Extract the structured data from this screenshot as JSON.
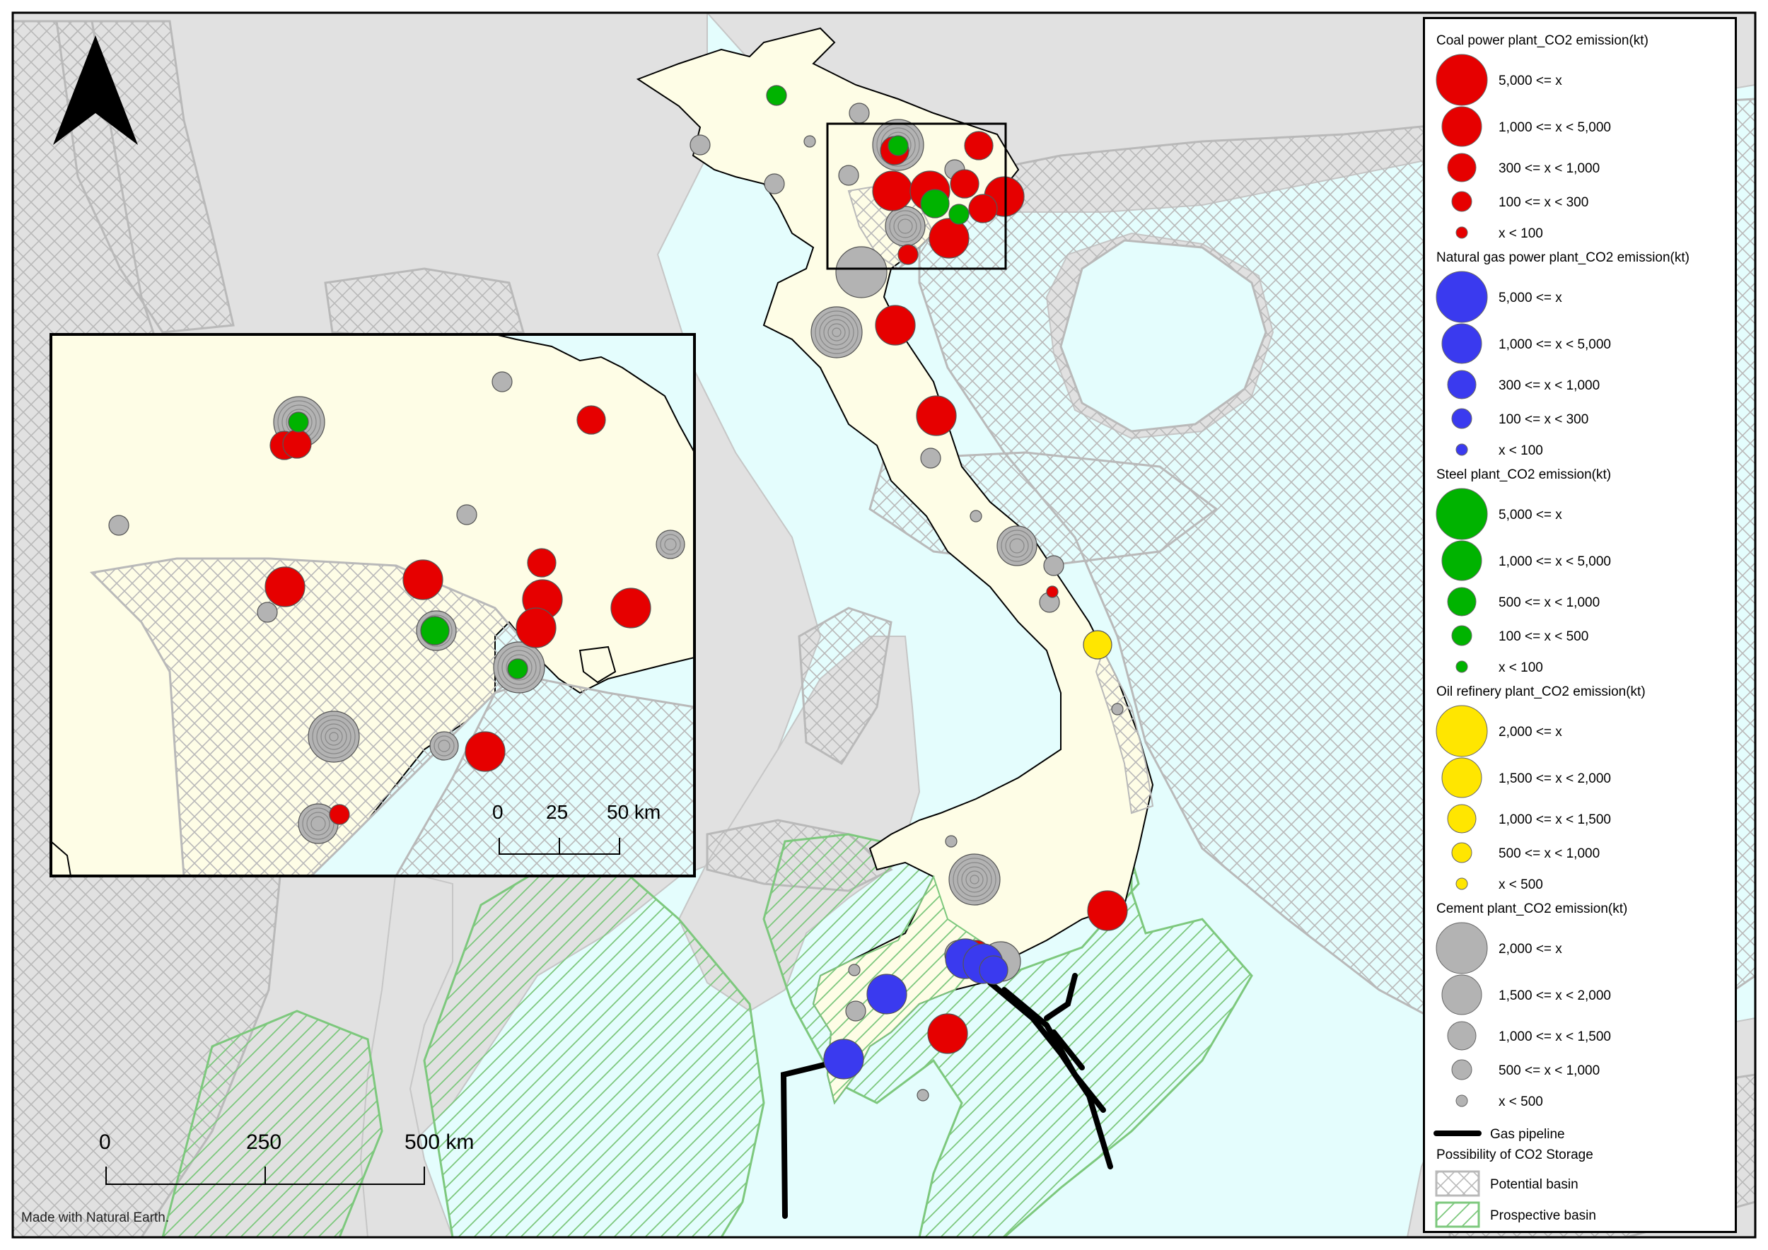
{
  "credit": "Made with Natural Earth.",
  "scale_bar": {
    "labels": [
      "0",
      "250",
      "500 km"
    ]
  },
  "inset_scale_bar": {
    "labels": [
      "0",
      "25",
      "50 km"
    ]
  },
  "colors": {
    "coal": "#e60000",
    "gas": "#3a3aef",
    "steel": "#00b300",
    "oil": "#ffe600",
    "cement": "#b3b3b3",
    "land_focus": "#fefde6",
    "land_other": "#e1e1e1",
    "sea": "#e4fdfd",
    "potential_hatch": "#bbbbbb",
    "prospective_hatch": "#7dc87d"
  },
  "legend": {
    "coal": {
      "title": "Coal power plant_CO2 emission(kt)",
      "items": [
        "5,000 <= x",
        "1,000 <= x < 5,000",
        "300 <= x < 1,000",
        "100 <= x < 300",
        "x < 100"
      ]
    },
    "gas": {
      "title": "Natural gas power plant_CO2 emission(kt)",
      "items": [
        "5,000 <= x",
        "1,000 <= x < 5,000",
        "300 <= x < 1,000",
        "100 <= x < 300",
        "x < 100"
      ]
    },
    "steel": {
      "title": "Steel plant_CO2 emission(kt)",
      "items": [
        "5,000 <= x",
        "1,000 <= x < 5,000",
        "500 <= x < 1,000",
        "100 <= x < 500",
        "x < 100"
      ]
    },
    "oil": {
      "title": "Oil refinery plant_CO2 emission(kt)",
      "items": [
        "2,000 <= x",
        "1,500 <= x < 2,000",
        "1,000 <= x < 1,500",
        "500 <= x < 1,000",
        "x < 500"
      ]
    },
    "cement": {
      "title": "Cement plant_CO2 emission(kt)",
      "items": [
        "2,000 <= x",
        "1,500 <= x < 2,000",
        "1,000 <= x < 1,500",
        "500 <= x < 1,000",
        "x < 500"
      ]
    },
    "pipeline": {
      "label": "Gas pipeline"
    },
    "storage": {
      "title": "Possibility of CO2 Storage",
      "potential": "Potential basin",
      "prospective": "Prospective basin"
    }
  }
}
